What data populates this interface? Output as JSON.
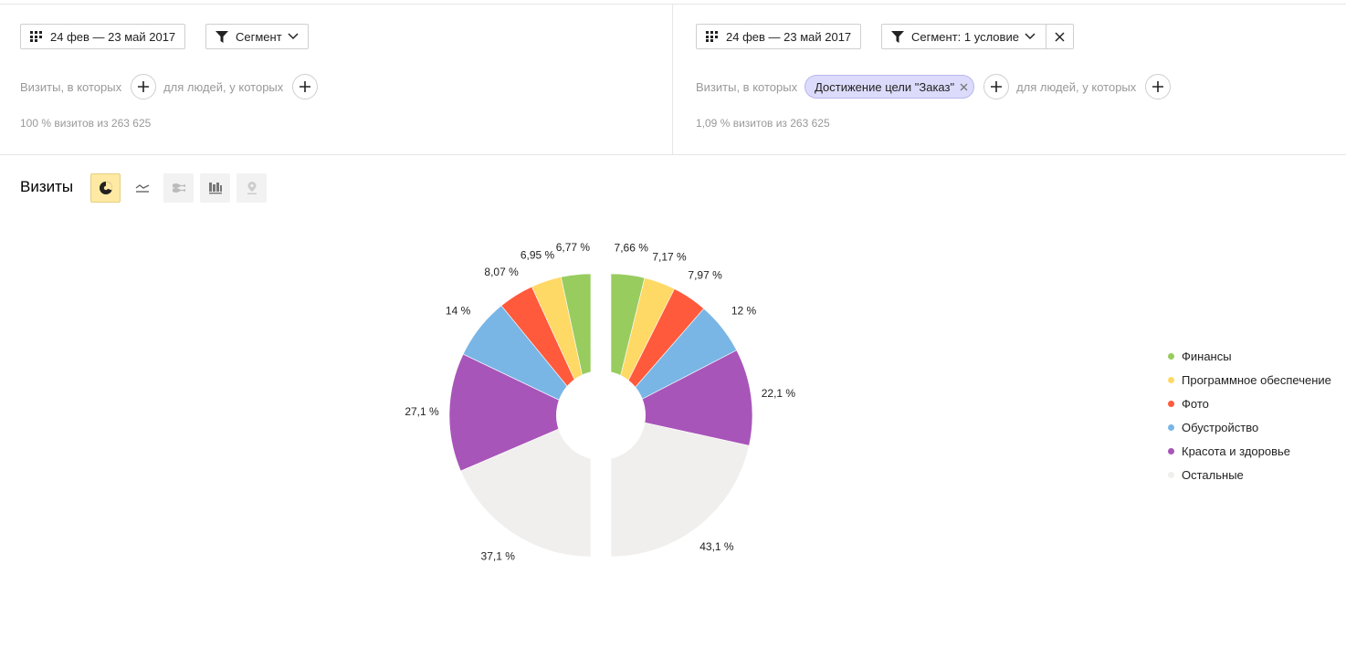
{
  "left_panel": {
    "date_label": "24 фев — 23 май 2017",
    "segment_label": "Сегмент",
    "visits_text": "Визиты, в которых",
    "people_text": "для людей, у которых",
    "share_text": "100 % визитов из 263 625"
  },
  "right_panel": {
    "date_label": "24 фев — 23 май 2017",
    "segment_label": "Сегмент: 1 условие",
    "visits_text": "Визиты, в которых",
    "condition_chip": "Достижение цели \"Заказ\"",
    "people_text": "для людей, у которых",
    "share_text": "1,09 % визитов из 263 625"
  },
  "section": {
    "title": "Визиты",
    "views": [
      "pie-chart-icon",
      "line-chart-icon",
      "area-chart-icon",
      "bar-chart-icon",
      "map-icon"
    ],
    "active_view": "pie-chart-icon"
  },
  "colors": {
    "Финансы": "#99cc5f",
    "Программное обеспечение": "#ffd966",
    "Фото": "#ff5a3c",
    "Обустройство": "#79b6e6",
    "Красота и здоровье": "#a855b9",
    "Остальные": "#f0efed"
  },
  "chart_data": {
    "type": "pie",
    "categories": [
      "Финансы",
      "Программное обеспечение",
      "Фото",
      "Обустройство",
      "Красота и здоровье",
      "Остальные"
    ],
    "series": [
      {
        "name": "100 % визитов из 263 625",
        "values": [
          6.77,
          6.95,
          8.07,
          14,
          27.1,
          37.1
        ],
        "labels": [
          "6,77 %",
          "6,95 %",
          "8,07 %",
          "14 %",
          "27,1 %",
          "37,1 %"
        ]
      },
      {
        "name": "1,09 % визитов из 263 625",
        "values": [
          7.66,
          7.17,
          7.97,
          12,
          22.1,
          43.1
        ],
        "labels": [
          "7,66 %",
          "7,17 %",
          "7,97 %",
          "12 %",
          "22,1 %",
          "43,1 %"
        ]
      }
    ],
    "legend": {
      "position": "right",
      "items": [
        "Финансы",
        "Программное обеспечение",
        "Фото",
        "Обустройство",
        "Красота и здоровье",
        "Остальные"
      ]
    }
  }
}
